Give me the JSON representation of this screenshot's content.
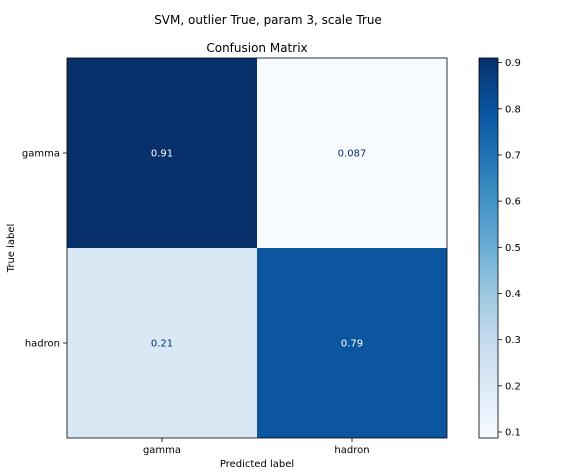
{
  "suptitle": "SVM, outlier True, param 3, scale True",
  "chart_data": {
    "type": "heatmap",
    "title": "Confusion Matrix",
    "xlabel": "Predicted label",
    "ylabel": "True label",
    "x_categories": [
      "gamma",
      "hadron"
    ],
    "y_categories": [
      "gamma",
      "hadron"
    ],
    "values": [
      [
        0.91,
        0.087
      ],
      [
        0.21,
        0.79
      ]
    ],
    "value_labels": [
      [
        "0.91",
        "0.087"
      ],
      [
        "0.21",
        "0.79"
      ]
    ],
    "colormap": "Blues",
    "colorbar": {
      "range": [
        0.087,
        0.91
      ],
      "ticks": [
        0.1,
        0.2,
        0.3,
        0.4,
        0.5,
        0.6,
        0.7,
        0.8,
        0.9
      ],
      "tick_labels": [
        "0.1",
        "0.2",
        "0.3",
        "0.4",
        "0.5",
        "0.6",
        "0.7",
        "0.8",
        "0.9"
      ]
    },
    "grid": false,
    "legend": "colorbar-right"
  }
}
